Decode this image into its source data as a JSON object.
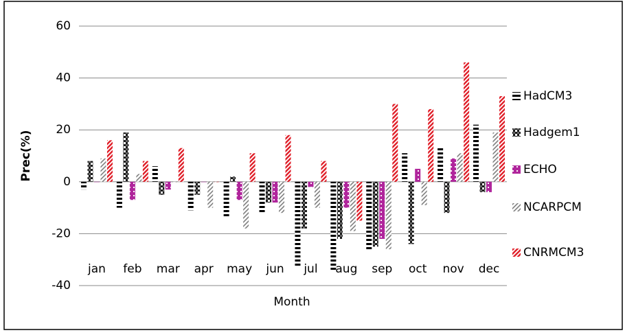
{
  "chart_data": {
    "type": "bar",
    "y_label": "Prec(%)",
    "x_label": "Month",
    "categories": [
      "jan",
      "feb",
      "mar",
      "apr",
      "may",
      "jun",
      "jul",
      "aug",
      "sep",
      "oct",
      "nov",
      "dec"
    ],
    "series": [
      {
        "name": "HadCM3",
        "color": "#000000",
        "values": [
          -3,
          -10,
          6,
          -11,
          -14,
          -12,
          -33,
          -34,
          -26,
          11,
          13,
          22
        ]
      },
      {
        "name": "Hadgem1",
        "color": "#1a1a1a",
        "values": [
          8,
          19,
          -5,
          -5,
          2,
          -8,
          -18,
          -22,
          -25,
          -24,
          -12,
          -4
        ]
      },
      {
        "name": "ECHO",
        "color": "#b0269c",
        "values": [
          0,
          -7,
          -3,
          0,
          -7,
          -8,
          -2,
          -10,
          -22,
          5,
          9,
          -4
        ]
      },
      {
        "name": "NCARPCM",
        "color": "#7f7f7f",
        "values": [
          9,
          3,
          0,
          -10,
          -18,
          -12,
          -10,
          -19,
          -26,
          -9,
          11,
          19
        ]
      },
      {
        "name": "CNRMCM3",
        "color": "#e0202a",
        "values": [
          16,
          8,
          13,
          0,
          11,
          18,
          8,
          -15,
          30,
          28,
          46,
          33
        ]
      }
    ],
    "ylim": [
      -40,
      60
    ],
    "yticks": [
      -40,
      -20,
      0,
      20,
      40,
      60
    ],
    "grid": true
  }
}
